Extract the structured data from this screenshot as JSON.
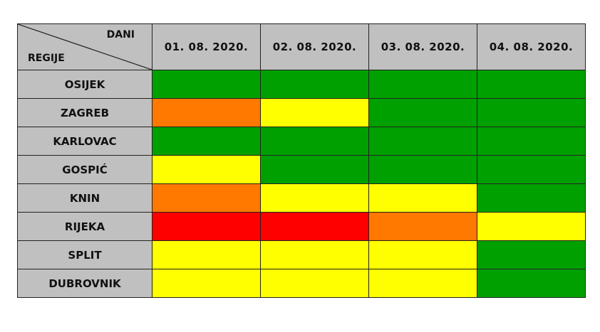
{
  "chart_data": {
    "type": "heatmap",
    "corner_top_label": "DANI",
    "corner_bottom_label": "REGIJE",
    "columns": [
      "01. 08. 2020.",
      "02. 08. 2020.",
      "03. 08. 2020.",
      "04. 08. 2020."
    ],
    "rows": [
      "OSIJEK",
      "ZAGREB",
      "KARLOVAC",
      "GOSPIĆ",
      "KNIN",
      "RIJEKA",
      "SPLIT",
      "DUBROVNIK"
    ],
    "values": [
      [
        "green",
        "green",
        "green",
        "green"
      ],
      [
        "orange",
        "yellow",
        "green",
        "green"
      ],
      [
        "green",
        "green",
        "green",
        "green"
      ],
      [
        "yellow",
        "green",
        "green",
        "green"
      ],
      [
        "orange",
        "yellow",
        "yellow",
        "green"
      ],
      [
        "red",
        "red",
        "orange",
        "yellow"
      ],
      [
        "yellow",
        "yellow",
        "yellow",
        "green"
      ],
      [
        "yellow",
        "yellow",
        "yellow",
        "green"
      ]
    ],
    "colors": {
      "green": "#00a000",
      "yellow": "#ffff00",
      "orange": "#ff7800",
      "red": "#ff0000"
    },
    "header_color": "#c0c0c0"
  }
}
